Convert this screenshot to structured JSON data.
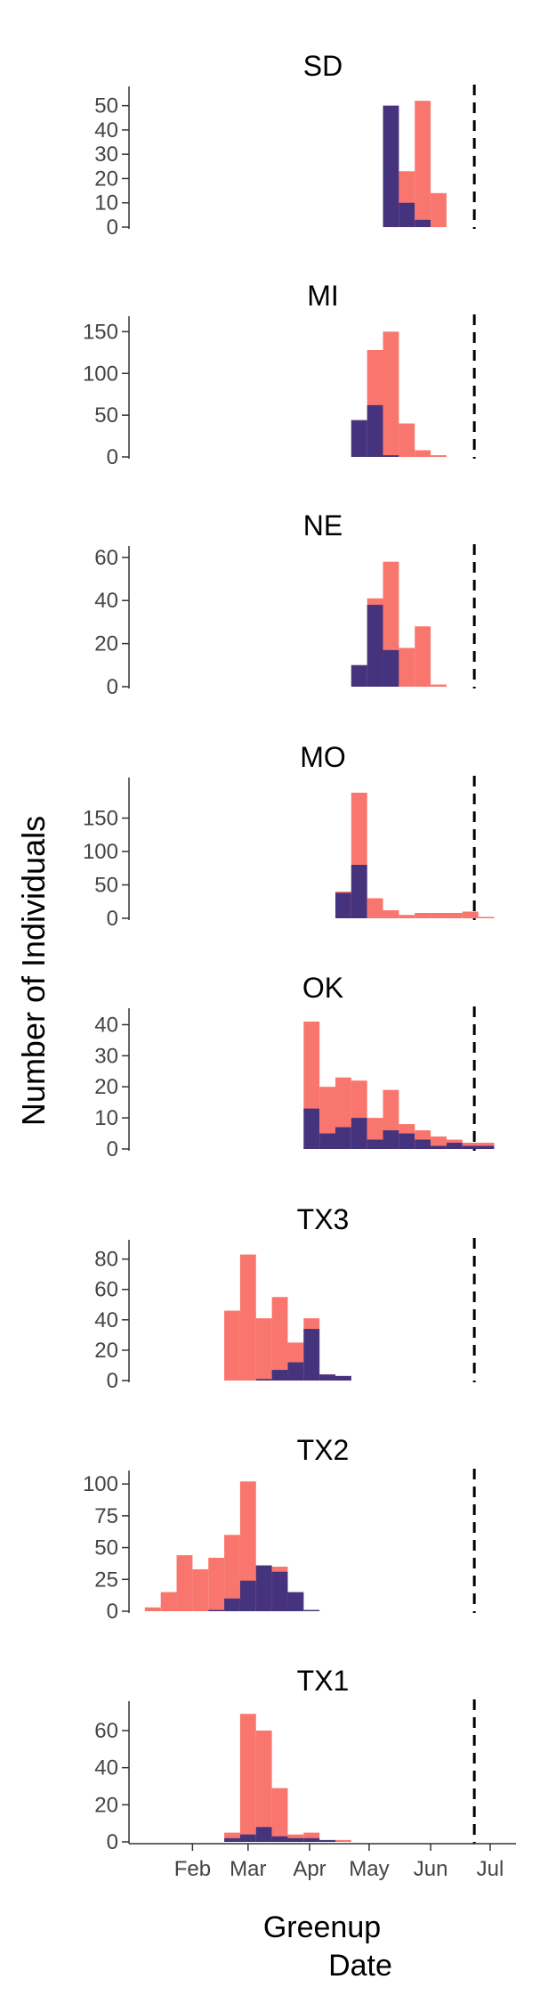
{
  "chart_data": {
    "type": "bar",
    "ylabel": "Number of Individuals",
    "xlabel_line1": "Greenup",
    "xlabel_line2": "Date",
    "x_ticks": [
      "Feb",
      "Mar",
      "Apr",
      "May",
      "Jun",
      "Jul"
    ],
    "x_tick_days": [
      32,
      60,
      91,
      121,
      152,
      182
    ],
    "x_range_days": [
      0,
      195
    ],
    "reference_line_day": 174,
    "bin_width_days": 8,
    "colors": {
      "layer1": "#F8766D",
      "layer2": "#46337E"
    },
    "panels": [
      {
        "title": "SD",
        "ylim": [
          0,
          55
        ],
        "yticks": [
          0,
          10,
          20,
          30,
          40,
          50
        ],
        "bins": [
          {
            "start": 128,
            "total": 50,
            "dark": 50
          },
          {
            "start": 136,
            "total": 23,
            "dark": 10
          },
          {
            "start": 144,
            "total": 52,
            "dark": 3
          },
          {
            "start": 152,
            "total": 14,
            "dark": 0
          }
        ]
      },
      {
        "title": "MI",
        "ylim": [
          0,
          160
        ],
        "yticks": [
          0,
          50,
          100,
          150
        ],
        "bins": [
          {
            "start": 112,
            "total": 44,
            "dark": 44
          },
          {
            "start": 120,
            "total": 128,
            "dark": 62
          },
          {
            "start": 128,
            "total": 150,
            "dark": 2
          },
          {
            "start": 136,
            "total": 40,
            "dark": 0
          },
          {
            "start": 144,
            "total": 8,
            "dark": 0
          },
          {
            "start": 152,
            "total": 2,
            "dark": 0
          }
        ]
      },
      {
        "title": "NE",
        "ylim": [
          0,
          62
        ],
        "yticks": [
          0,
          20,
          40,
          60
        ],
        "bins": [
          {
            "start": 112,
            "total": 10,
            "dark": 10
          },
          {
            "start": 120,
            "total": 41,
            "dark": 38
          },
          {
            "start": 128,
            "total": 58,
            "dark": 17
          },
          {
            "start": 136,
            "total": 18,
            "dark": 0
          },
          {
            "start": 144,
            "total": 28,
            "dark": 0
          },
          {
            "start": 152,
            "total": 1,
            "dark": 0
          }
        ]
      },
      {
        "title": "MO",
        "ylim": [
          0,
          200
        ],
        "yticks": [
          0,
          50,
          100,
          150
        ],
        "bins": [
          {
            "start": 104,
            "total": 40,
            "dark": 38
          },
          {
            "start": 112,
            "total": 188,
            "dark": 80
          },
          {
            "start": 120,
            "total": 30,
            "dark": 0
          },
          {
            "start": 128,
            "total": 12,
            "dark": 0
          },
          {
            "start": 136,
            "total": 5,
            "dark": 0
          },
          {
            "start": 144,
            "total": 8,
            "dark": 0
          },
          {
            "start": 152,
            "total": 8,
            "dark": 0
          },
          {
            "start": 160,
            "total": 8,
            "dark": 0
          },
          {
            "start": 168,
            "total": 10,
            "dark": 0
          },
          {
            "start": 176,
            "total": 2,
            "dark": 0
          }
        ]
      },
      {
        "title": "OK",
        "ylim": [
          0,
          43
        ],
        "yticks": [
          0,
          10,
          20,
          30,
          40
        ],
        "bins": [
          {
            "start": 88,
            "total": 41,
            "dark": 13
          },
          {
            "start": 96,
            "total": 20,
            "dark": 5
          },
          {
            "start": 104,
            "total": 23,
            "dark": 7
          },
          {
            "start": 112,
            "total": 22,
            "dark": 10
          },
          {
            "start": 120,
            "total": 10,
            "dark": 3
          },
          {
            "start": 128,
            "total": 19,
            "dark": 6
          },
          {
            "start": 136,
            "total": 8,
            "dark": 5
          },
          {
            "start": 144,
            "total": 6,
            "dark": 3
          },
          {
            "start": 152,
            "total": 4,
            "dark": 1
          },
          {
            "start": 160,
            "total": 3,
            "dark": 2
          },
          {
            "start": 168,
            "total": 2,
            "dark": 1
          },
          {
            "start": 176,
            "total": 2,
            "dark": 1
          }
        ]
      },
      {
        "title": "TX3",
        "ylim": [
          0,
          88
        ],
        "yticks": [
          0,
          20,
          40,
          60,
          80
        ],
        "bins": [
          {
            "start": 48,
            "total": 46,
            "dark": 0
          },
          {
            "start": 56,
            "total": 83,
            "dark": 0
          },
          {
            "start": 64,
            "total": 41,
            "dark": 1
          },
          {
            "start": 72,
            "total": 55,
            "dark": 7
          },
          {
            "start": 80,
            "total": 25,
            "dark": 12
          },
          {
            "start": 88,
            "total": 41,
            "dark": 34
          },
          {
            "start": 96,
            "total": 4,
            "dark": 4
          },
          {
            "start": 104,
            "total": 3,
            "dark": 3
          }
        ]
      },
      {
        "title": "TX2",
        "ylim": [
          0,
          105
        ],
        "yticks": [
          0,
          25,
          50,
          75,
          100
        ],
        "bins": [
          {
            "start": 8,
            "total": 3,
            "dark": 0
          },
          {
            "start": 16,
            "total": 15,
            "dark": 0
          },
          {
            "start": 24,
            "total": 44,
            "dark": 0
          },
          {
            "start": 32,
            "total": 33,
            "dark": 0
          },
          {
            "start": 40,
            "total": 42,
            "dark": 1
          },
          {
            "start": 48,
            "total": 60,
            "dark": 10
          },
          {
            "start": 56,
            "total": 102,
            "dark": 24
          },
          {
            "start": 64,
            "total": 36,
            "dark": 36
          },
          {
            "start": 72,
            "total": 35,
            "dark": 31
          },
          {
            "start": 80,
            "total": 15,
            "dark": 15
          },
          {
            "start": 88,
            "total": 1,
            "dark": 1
          }
        ]
      },
      {
        "title": "TX1",
        "ylim": [
          0,
          72
        ],
        "yticks": [
          0,
          20,
          40,
          60
        ],
        "bins": [
          {
            "start": 48,
            "total": 5,
            "dark": 2
          },
          {
            "start": 56,
            "total": 69,
            "dark": 4
          },
          {
            "start": 64,
            "total": 60,
            "dark": 8
          },
          {
            "start": 72,
            "total": 29,
            "dark": 3
          },
          {
            "start": 80,
            "total": 4,
            "dark": 2
          },
          {
            "start": 88,
            "total": 5,
            "dark": 2
          },
          {
            "start": 96,
            "total": 1,
            "dark": 1
          },
          {
            "start": 104,
            "total": 1,
            "dark": 0
          }
        ]
      }
    ]
  }
}
